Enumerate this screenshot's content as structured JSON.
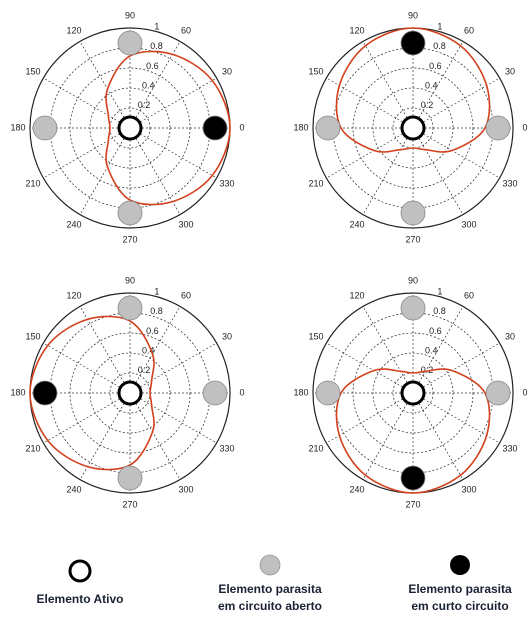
{
  "chart_data": [
    {
      "type": "polar",
      "rlim": [
        0,
        1
      ],
      "rticks": [
        0.2,
        0.4,
        0.6,
        0.8,
        1
      ],
      "thetaticks": [
        0,
        30,
        60,
        90,
        120,
        150,
        180,
        210,
        240,
        270,
        300,
        330
      ],
      "element_colors": [
        "#000000",
        "#c0c0c0",
        "#c0c0c0",
        "#c0c0c0"
      ],
      "series": [
        {
          "color": "#d2401c",
          "theta": [
            0,
            30,
            60,
            90,
            120,
            150,
            180,
            210,
            240,
            270,
            300,
            330
          ],
          "r": [
            1.0,
            0.95,
            0.85,
            0.72,
            0.45,
            0.25,
            0.2,
            0.25,
            0.45,
            0.72,
            0.85,
            0.95
          ]
        }
      ]
    },
    {
      "type": "polar",
      "rlim": [
        0,
        1
      ],
      "rticks": [
        0.2,
        0.4,
        0.6,
        0.8,
        1
      ],
      "thetaticks": [
        0,
        30,
        60,
        90,
        120,
        150,
        180,
        210,
        240,
        270,
        300,
        330
      ],
      "element_colors": [
        "#c0c0c0",
        "#000000",
        "#c0c0c0",
        "#c0c0c0"
      ],
      "series": [
        {
          "color": "#d2401c",
          "theta": [
            0,
            30,
            60,
            90,
            120,
            150,
            180,
            210,
            240,
            270,
            300,
            330
          ],
          "r": [
            0.72,
            0.85,
            0.95,
            1.0,
            0.95,
            0.85,
            0.72,
            0.45,
            0.25,
            0.2,
            0.25,
            0.45
          ]
        }
      ]
    },
    {
      "type": "polar",
      "rlim": [
        0,
        1
      ],
      "rticks": [
        0.2,
        0.4,
        0.6,
        0.8,
        1
      ],
      "thetaticks": [
        0,
        30,
        60,
        90,
        120,
        150,
        180,
        210,
        240,
        270,
        300,
        330
      ],
      "element_colors": [
        "#c0c0c0",
        "#c0c0c0",
        "#000000",
        "#c0c0c0"
      ],
      "series": [
        {
          "color": "#d2401c",
          "theta": [
            0,
            30,
            60,
            90,
            120,
            150,
            180,
            210,
            240,
            270,
            300,
            330
          ],
          "r": [
            0.2,
            0.25,
            0.45,
            0.72,
            0.85,
            0.95,
            1.0,
            0.95,
            0.85,
            0.72,
            0.45,
            0.25
          ]
        }
      ]
    },
    {
      "type": "polar",
      "rlim": [
        0,
        1
      ],
      "rticks": [
        0.2,
        0.4,
        0.6,
        0.8,
        1
      ],
      "thetaticks": [
        0,
        30,
        60,
        90,
        120,
        150,
        180,
        210,
        240,
        270,
        300,
        330
      ],
      "element_colors": [
        "#c0c0c0",
        "#c0c0c0",
        "#c0c0c0",
        "#000000"
      ],
      "series": [
        {
          "color": "#d2401c",
          "theta": [
            0,
            30,
            60,
            90,
            120,
            150,
            180,
            210,
            240,
            270,
            300,
            330
          ],
          "r": [
            0.72,
            0.45,
            0.25,
            0.2,
            0.25,
            0.45,
            0.72,
            0.85,
            0.95,
            1.0,
            0.95,
            0.85
          ]
        }
      ]
    }
  ],
  "legend": [
    {
      "lines": [
        "Elemento Ativo"
      ]
    },
    {
      "lines": [
        "Elemento parasita",
        "em circuito aberto"
      ]
    },
    {
      "lines": [
        "Elemento parasita",
        "em curto circuito"
      ]
    }
  ]
}
